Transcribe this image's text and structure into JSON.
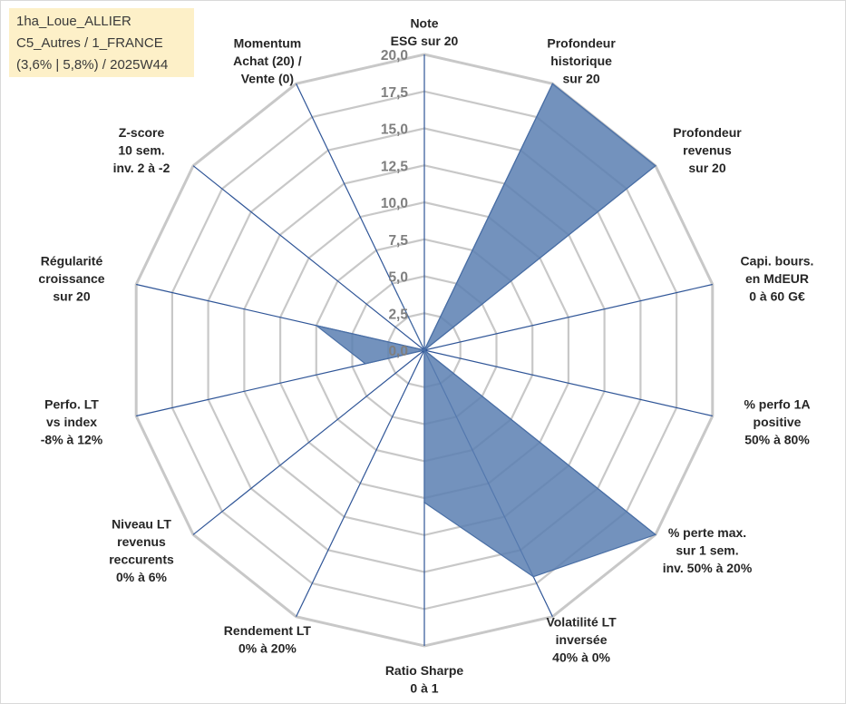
{
  "info_box": {
    "line1": "1ha_Loue_ALLIER",
    "line2": "C5_Autres / 1_FRANCE",
    "line3": "(3,6% | 5,8%) / 2025W44"
  },
  "colors": {
    "grid": "#c8c8c8",
    "spoke": "#2f5597",
    "fill": "#5b7fb2",
    "stroke": "#4a6fa5",
    "ticks": "#7f7f7f"
  },
  "chart_data": {
    "type": "radar",
    "title": "",
    "rmin": 0,
    "rmax": 20,
    "tick_step": 2.5,
    "tick_labels": [
      "0,0",
      "2,5",
      "5,0",
      "7,5",
      "10,0",
      "12,5",
      "15,0",
      "17,5",
      "20,0"
    ],
    "axes": [
      {
        "label": [
          "Note",
          "ESG sur 20"
        ],
        "value": 0
      },
      {
        "label": [
          "Profondeur",
          "historique",
          "sur 20"
        ],
        "value": 20
      },
      {
        "label": [
          "Profondeur",
          "revenus",
          "sur 20"
        ],
        "value": 20
      },
      {
        "label": [
          "Capi. bours.",
          "en MdEUR",
          "0 à 60 G€"
        ],
        "value": 0
      },
      {
        "label": [
          "% perfo 1A",
          "positive",
          "50% à 80%"
        ],
        "value": 0
      },
      {
        "label": [
          "% perte max.",
          "sur 1 sem.",
          "inv. 50% à 20%"
        ],
        "value": 20
      },
      {
        "label": [
          "Volatilité LT",
          "inversée",
          "40% à 0%"
        ],
        "value": 17
      },
      {
        "label": [
          "Ratio Sharpe",
          "0 à 1"
        ],
        "value": 10.3
      },
      {
        "label": [
          "Rendement LT",
          "0% à 20%"
        ],
        "value": 0
      },
      {
        "label": [
          "Niveau LT",
          "revenus",
          "reccurents",
          "0% à 6%"
        ],
        "value": 0
      },
      {
        "label": [
          "Perfo. LT",
          "vs index",
          "-8% à 12%"
        ],
        "value": 4.1
      },
      {
        "label": [
          "Régularité",
          "croissance",
          "sur 20"
        ],
        "value": 7.5
      },
      {
        "label": [
          "Z-score",
          "10 sem.",
          "inv. 2 à -2"
        ],
        "value": 0
      },
      {
        "label": [
          "Momentum",
          "Achat (20) /",
          "Vente (0)"
        ],
        "value": 4.2
      }
    ]
  }
}
